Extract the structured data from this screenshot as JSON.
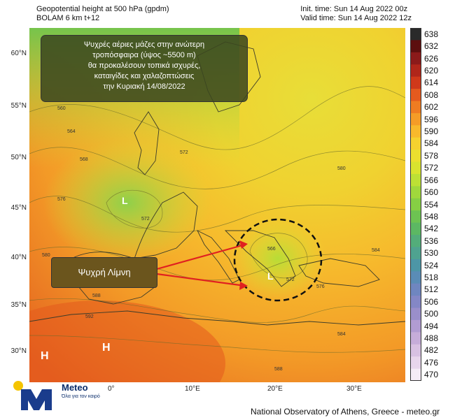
{
  "header": {
    "title_line1": "Geopotential height at 500 hPa (gpdm)",
    "title_line2": "BOLAM 6 km t+12",
    "init_time": "Init. time: Sun 14 Aug 2022 00z",
    "valid_time": "Valid time: Sun 14 Aug 2022 12z"
  },
  "annotation": {
    "message_lines": [
      "Ψυχρές αέριες μάζες στην ανώτερη",
      "τροπόσφαιρα (ύψος ~5500 m)",
      "θα προκαλέσουν τοπικά ισχυρές,",
      "καταιγίδες και χαλαζοπτώσεις",
      "την Κυριακή 14/08/2022"
    ],
    "cold_lake_label": "Ψυχρή Λίμνη",
    "arrow_color": "#e02020",
    "outline_color": "#111111"
  },
  "axes": {
    "lat_labels": [
      "60°N",
      "55°N",
      "50°N",
      "45°N",
      "40°N",
      "35°N",
      "30°N"
    ],
    "lon_labels": [
      "0°",
      "10°E",
      "20°E",
      "30°E"
    ]
  },
  "colorbar": {
    "labels": [
      "638",
      "632",
      "626",
      "620",
      "614",
      "608",
      "602",
      "596",
      "590",
      "584",
      "578",
      "572",
      "566",
      "560",
      "554",
      "548",
      "542",
      "536",
      "530",
      "524",
      "518",
      "512",
      "506",
      "500",
      "494",
      "488",
      "482",
      "476",
      "470"
    ],
    "colors": [
      "#2a2a2a",
      "#5c0f0f",
      "#8b1a1a",
      "#b0261a",
      "#d0391a",
      "#e45a1e",
      "#ef7c22",
      "#f59c27",
      "#f8b92c",
      "#f5d22f",
      "#ecdf2f",
      "#d9e32f",
      "#bde035",
      "#a0d83c",
      "#86cf44",
      "#6dc352",
      "#5cb863",
      "#53ad7a",
      "#4fa390",
      "#4d96a6",
      "#5a8cb6",
      "#6f86c0",
      "#8487c6",
      "#9a8fcb",
      "#b19cd2",
      "#c6add9",
      "#d8c1e2",
      "#e8d6ec",
      "#f5ecf6"
    ]
  },
  "contour_labels": [
    "560",
    "564",
    "568",
    "572",
    "576",
    "580",
    "584",
    "588",
    "592",
    "566"
  ],
  "pressure_centers": {
    "low": "L",
    "high": "H"
  },
  "footer": {
    "credit": "National Observatory of Athens, Greece - meteo.gr",
    "logo_name": "Meteo",
    "logo_tagline": "Όλα για τον καιρό",
    "logo_color": "#1a3c8c",
    "logo_dot_color": "#f5c400"
  }
}
